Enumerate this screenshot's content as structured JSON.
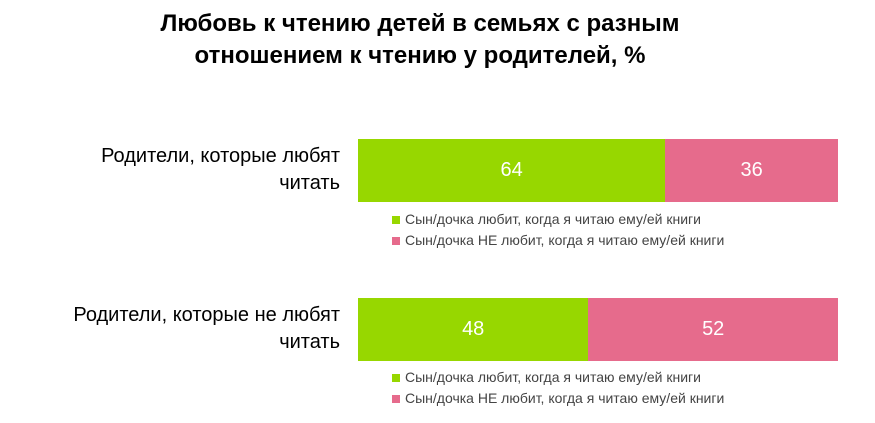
{
  "colors": {
    "loves": "#97d700",
    "not_loves": "#e66b8c"
  },
  "chart_data": {
    "type": "bar",
    "orientation": "horizontal",
    "stacked": true,
    "title_lines": [
      "Любовь к чтению детей в семьях с разным",
      "отношением к чтению у родителей, %"
    ],
    "categories": [
      [
        "Родители, которые любят",
        "читать"
      ],
      [
        "Родители, которые не любят",
        "читать"
      ]
    ],
    "series": [
      {
        "name": "Сын/дочка любит, когда я читаю ему/ей книги",
        "values": [
          64,
          48
        ]
      },
      {
        "name": "Сын/дочка НЕ любит, когда я читаю ему/ей книги",
        "values": [
          36,
          52
        ]
      }
    ],
    "xlim": [
      0,
      100
    ],
    "legend_placement": "below each bar"
  }
}
